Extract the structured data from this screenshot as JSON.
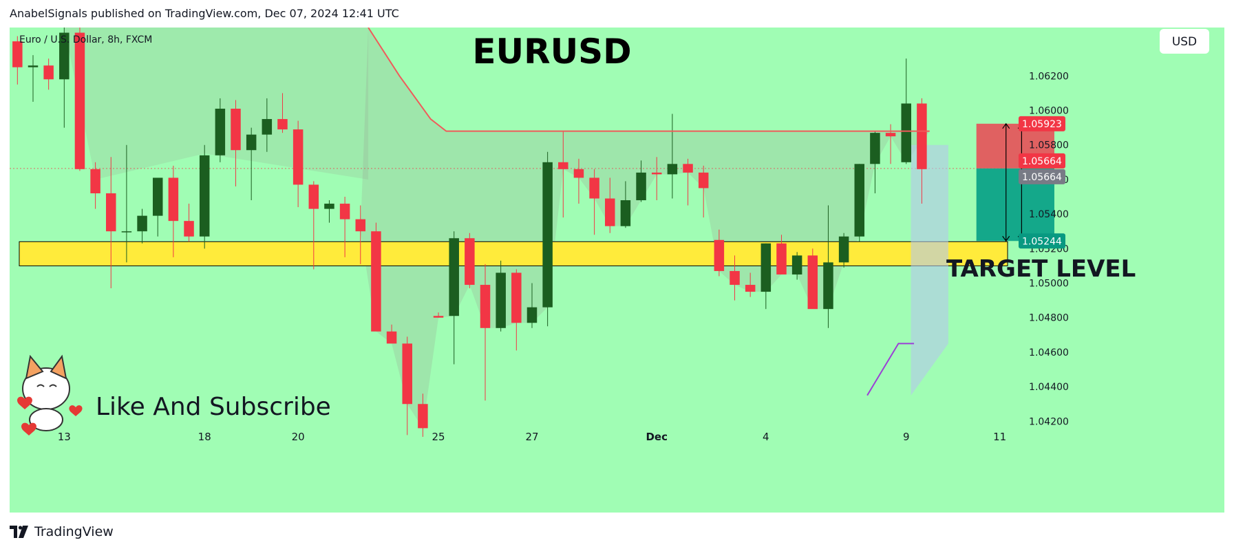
{
  "header": {
    "published_line": "AnabelSignals published on TradingView.com, Dec 07, 2024 12:41 UTC"
  },
  "footer": {
    "brand": "TradingView"
  },
  "chart_data": {
    "type": "candlestick",
    "symbol_label": "Euro / U.S. Dollar, 8h, FXCM",
    "title": "EURUSD",
    "currency_button": "USD",
    "ylim": [
      1.0405,
      1.0648
    ],
    "y_ticks": [
      1.042,
      1.044,
      1.046,
      1.048,
      1.05,
      1.052,
      1.054,
      1.056,
      1.058,
      1.06,
      1.062
    ],
    "y_tick_labels": [
      "1.04200",
      "1.04400",
      "1.04600",
      "1.04800",
      "1.05000",
      "1.05200",
      "1.05400",
      "1.05600",
      "1.05800",
      "1.06000",
      "1.06200"
    ],
    "x_labels": [
      {
        "label": "13",
        "bar": 3
      },
      {
        "label": "18",
        "bar": 12
      },
      {
        "label": "20",
        "bar": 18
      },
      {
        "label": "25",
        "bar": 27
      },
      {
        "label": "27",
        "bar": 33
      },
      {
        "label": "Dec",
        "bar": 41
      },
      {
        "label": "4",
        "bar": 48
      },
      {
        "label": "9",
        "bar": 57
      },
      {
        "label": "11",
        "bar": 63
      }
    ],
    "total_bars": 64,
    "candles": [
      [
        1.064,
        1.0643,
        1.0615,
        1.0625
      ],
      [
        1.0625,
        1.0632,
        1.0605,
        1.0626
      ],
      [
        1.0626,
        1.063,
        1.0612,
        1.0618
      ],
      [
        1.0618,
        1.0648,
        1.059,
        1.0645
      ],
      [
        1.0645,
        1.0648,
        1.0565,
        1.0566
      ],
      [
        1.0566,
        1.057,
        1.0543,
        1.0552
      ],
      [
        1.0552,
        1.0573,
        1.0497,
        1.053
      ],
      [
        1.053,
        1.058,
        1.0512,
        1.053
      ],
      [
        1.053,
        1.0543,
        1.0523,
        1.0539
      ],
      [
        1.0539,
        1.056,
        1.0527,
        1.0561
      ],
      [
        1.0561,
        1.0568,
        1.0515,
        1.0536
      ],
      [
        1.0536,
        1.0546,
        1.0524,
        1.0527
      ],
      [
        1.0527,
        1.058,
        1.052,
        1.0574
      ],
      [
        1.0574,
        1.0607,
        1.057,
        1.0601
      ],
      [
        1.0601,
        1.0606,
        1.0556,
        1.0577
      ],
      [
        1.0577,
        1.059,
        1.0548,
        1.0586
      ],
      [
        1.0586,
        1.0607,
        1.0576,
        1.0595
      ],
      [
        1.0595,
        1.061,
        1.0587,
        1.0589
      ],
      [
        1.0589,
        1.0594,
        1.0544,
        1.0557
      ],
      [
        1.0557,
        1.0559,
        1.0508,
        1.0543
      ],
      [
        1.0543,
        1.0548,
        1.0535,
        1.0546
      ],
      [
        1.0546,
        1.055,
        1.0515,
        1.0537
      ],
      [
        1.0537,
        1.0545,
        1.0511,
        1.053
      ],
      [
        1.053,
        1.0535,
        1.0474,
        1.0472
      ],
      [
        1.0472,
        1.0476,
        1.0466,
        1.0465
      ],
      [
        1.0465,
        1.0469,
        1.0412,
        1.043
      ],
      [
        1.043,
        1.0436,
        1.0411,
        1.0416
      ],
      [
        1.0481,
        1.0483,
        1.048,
        1.048
      ],
      [
        1.0481,
        1.053,
        1.0453,
        1.0526
      ],
      [
        1.0526,
        1.0529,
        1.0497,
        1.0499
      ],
      [
        1.0499,
        1.0511,
        1.0432,
        1.0474
      ],
      [
        1.0474,
        1.0513,
        1.0472,
        1.0506
      ],
      [
        1.0506,
        1.0508,
        1.0461,
        1.0477
      ],
      [
        1.0477,
        1.05,
        1.0474,
        1.0486
      ],
      [
        1.0486,
        1.0576,
        1.0475,
        1.057
      ],
      [
        1.057,
        1.0588,
        1.0538,
        1.0566
      ],
      [
        1.0566,
        1.0572,
        1.0546,
        1.0561
      ],
      [
        1.0561,
        1.0566,
        1.0528,
        1.0549
      ],
      [
        1.0549,
        1.0561,
        1.0529,
        1.0533
      ],
      [
        1.0533,
        1.0559,
        1.0532,
        1.0548
      ],
      [
        1.0548,
        1.0571,
        1.0547,
        1.0564
      ],
      [
        1.0564,
        1.0573,
        1.0548,
        1.0563
      ],
      [
        1.0563,
        1.0598,
        1.0549,
        1.0569
      ],
      [
        1.0569,
        1.0572,
        1.0545,
        1.0564
      ],
      [
        1.0564,
        1.0568,
        1.0538,
        1.0555
      ],
      [
        1.0525,
        1.0531,
        1.0504,
        1.0507
      ],
      [
        1.0507,
        1.0516,
        1.049,
        1.0499
      ],
      [
        1.0499,
        1.0506,
        1.0492,
        1.0495
      ],
      [
        1.0495,
        1.0523,
        1.0485,
        1.0523
      ],
      [
        1.0523,
        1.0528,
        1.0505,
        1.0505
      ],
      [
        1.0505,
        1.0518,
        1.0502,
        1.0516
      ],
      [
        1.0516,
        1.052,
        1.0487,
        1.0485
      ],
      [
        1.0485,
        1.0545,
        1.0474,
        1.0512
      ],
      [
        1.0512,
        1.0529,
        1.0509,
        1.0527
      ],
      [
        1.0527,
        1.0569,
        1.0524,
        1.0569
      ],
      [
        1.0569,
        1.0588,
        1.0552,
        1.0587
      ],
      [
        1.0587,
        1.0592,
        1.0569,
        1.0585
      ],
      [
        1.057,
        1.063,
        1.0569,
        1.0604
      ],
      [
        1.0604,
        1.0607,
        1.0546,
        1.0566
      ]
    ],
    "support_zone": {
      "upper": 1.0524,
      "lower": 1.051,
      "label": "TARGET LEVEL"
    },
    "price_labels": [
      {
        "value": 1.05923,
        "text": "1.05923",
        "color": "#f23645"
      },
      {
        "value": 1.05664,
        "text": "1.05664",
        "color": "#f23645"
      },
      {
        "value": 1.05664,
        "text": "1.05664",
        "color": "#787b86"
      },
      {
        "value": 1.05244,
        "text": "1.05244",
        "color": "#089981"
      }
    ],
    "position_tool": {
      "stop": 1.05923,
      "entry": 1.05664,
      "target": 1.05244,
      "start_bar": 61.5,
      "end_bar": 66.5
    },
    "red_indicator": [
      [
        22.5,
        1.0648
      ],
      [
        24.5,
        1.062
      ],
      [
        26.5,
        1.0595
      ],
      [
        27.5,
        1.0588
      ],
      [
        58.5,
        1.0588
      ]
    ],
    "purple_indicator": [
      [
        54.5,
        1.0435
      ],
      [
        55.5,
        1.045
      ],
      [
        56.5,
        1.0465
      ],
      [
        57.5,
        1.0465
      ]
    ],
    "annotation": "Like And Subscribe",
    "colors": {
      "background": "#a0fdb4",
      "up": "#1b5e20",
      "down": "#f23645",
      "zone": "#ffeb3b",
      "zone_border": "#000000",
      "stop_box": "#e06161",
      "target_box": "#14a88a"
    }
  }
}
